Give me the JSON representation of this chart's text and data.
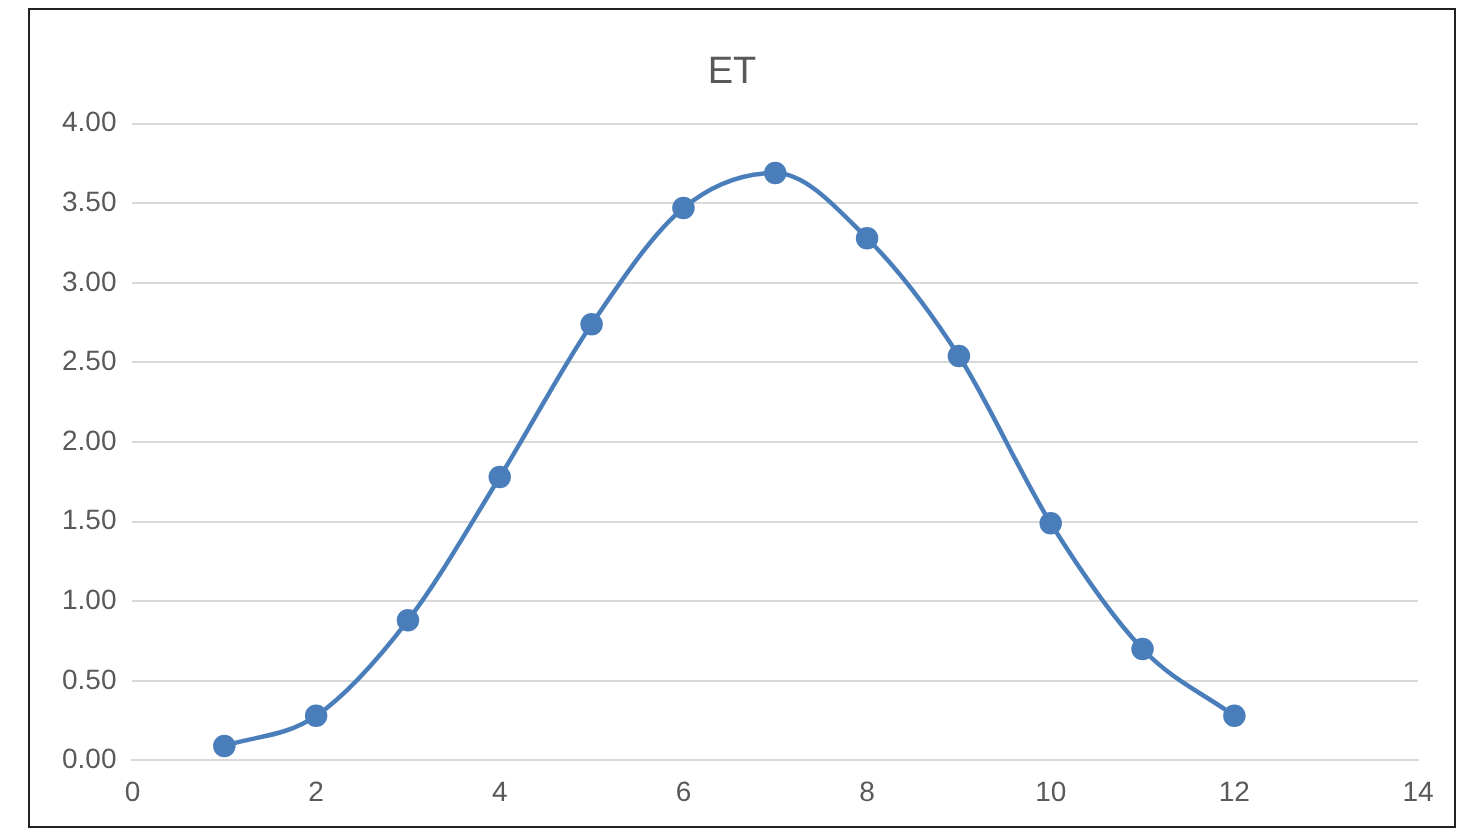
{
  "chart_data": {
    "type": "line",
    "title": "ET",
    "x": [
      1,
      2,
      3,
      4,
      5,
      6,
      7,
      8,
      9,
      10,
      11,
      12
    ],
    "series": [
      {
        "color": "#4a7ebb",
        "values": [
          0.09,
          0.28,
          0.88,
          1.78,
          2.74,
          3.47,
          3.69,
          3.28,
          2.54,
          1.49,
          0.7,
          0.28
        ]
      }
    ],
    "xlim": [
      0,
      14
    ],
    "xticks": [
      0,
      2,
      4,
      6,
      8,
      10,
      12,
      14
    ],
    "ylim": [
      0,
      4
    ],
    "yticks": [
      {
        "value": 0,
        "label": "0.00"
      },
      {
        "value": 0.5,
        "label": "0.50"
      },
      {
        "value": 1,
        "label": "1.00"
      },
      {
        "value": 1.5,
        "label": "1.50"
      },
      {
        "value": 2,
        "label": "2.00"
      },
      {
        "value": 2.5,
        "label": "2.50"
      },
      {
        "value": 3,
        "label": "3.00"
      },
      {
        "value": 3.5,
        "label": "3.50"
      },
      {
        "value": 4,
        "label": "4.00"
      }
    ],
    "grid": "y",
    "marker": "circle",
    "line_style": "solid",
    "legend": false
  }
}
